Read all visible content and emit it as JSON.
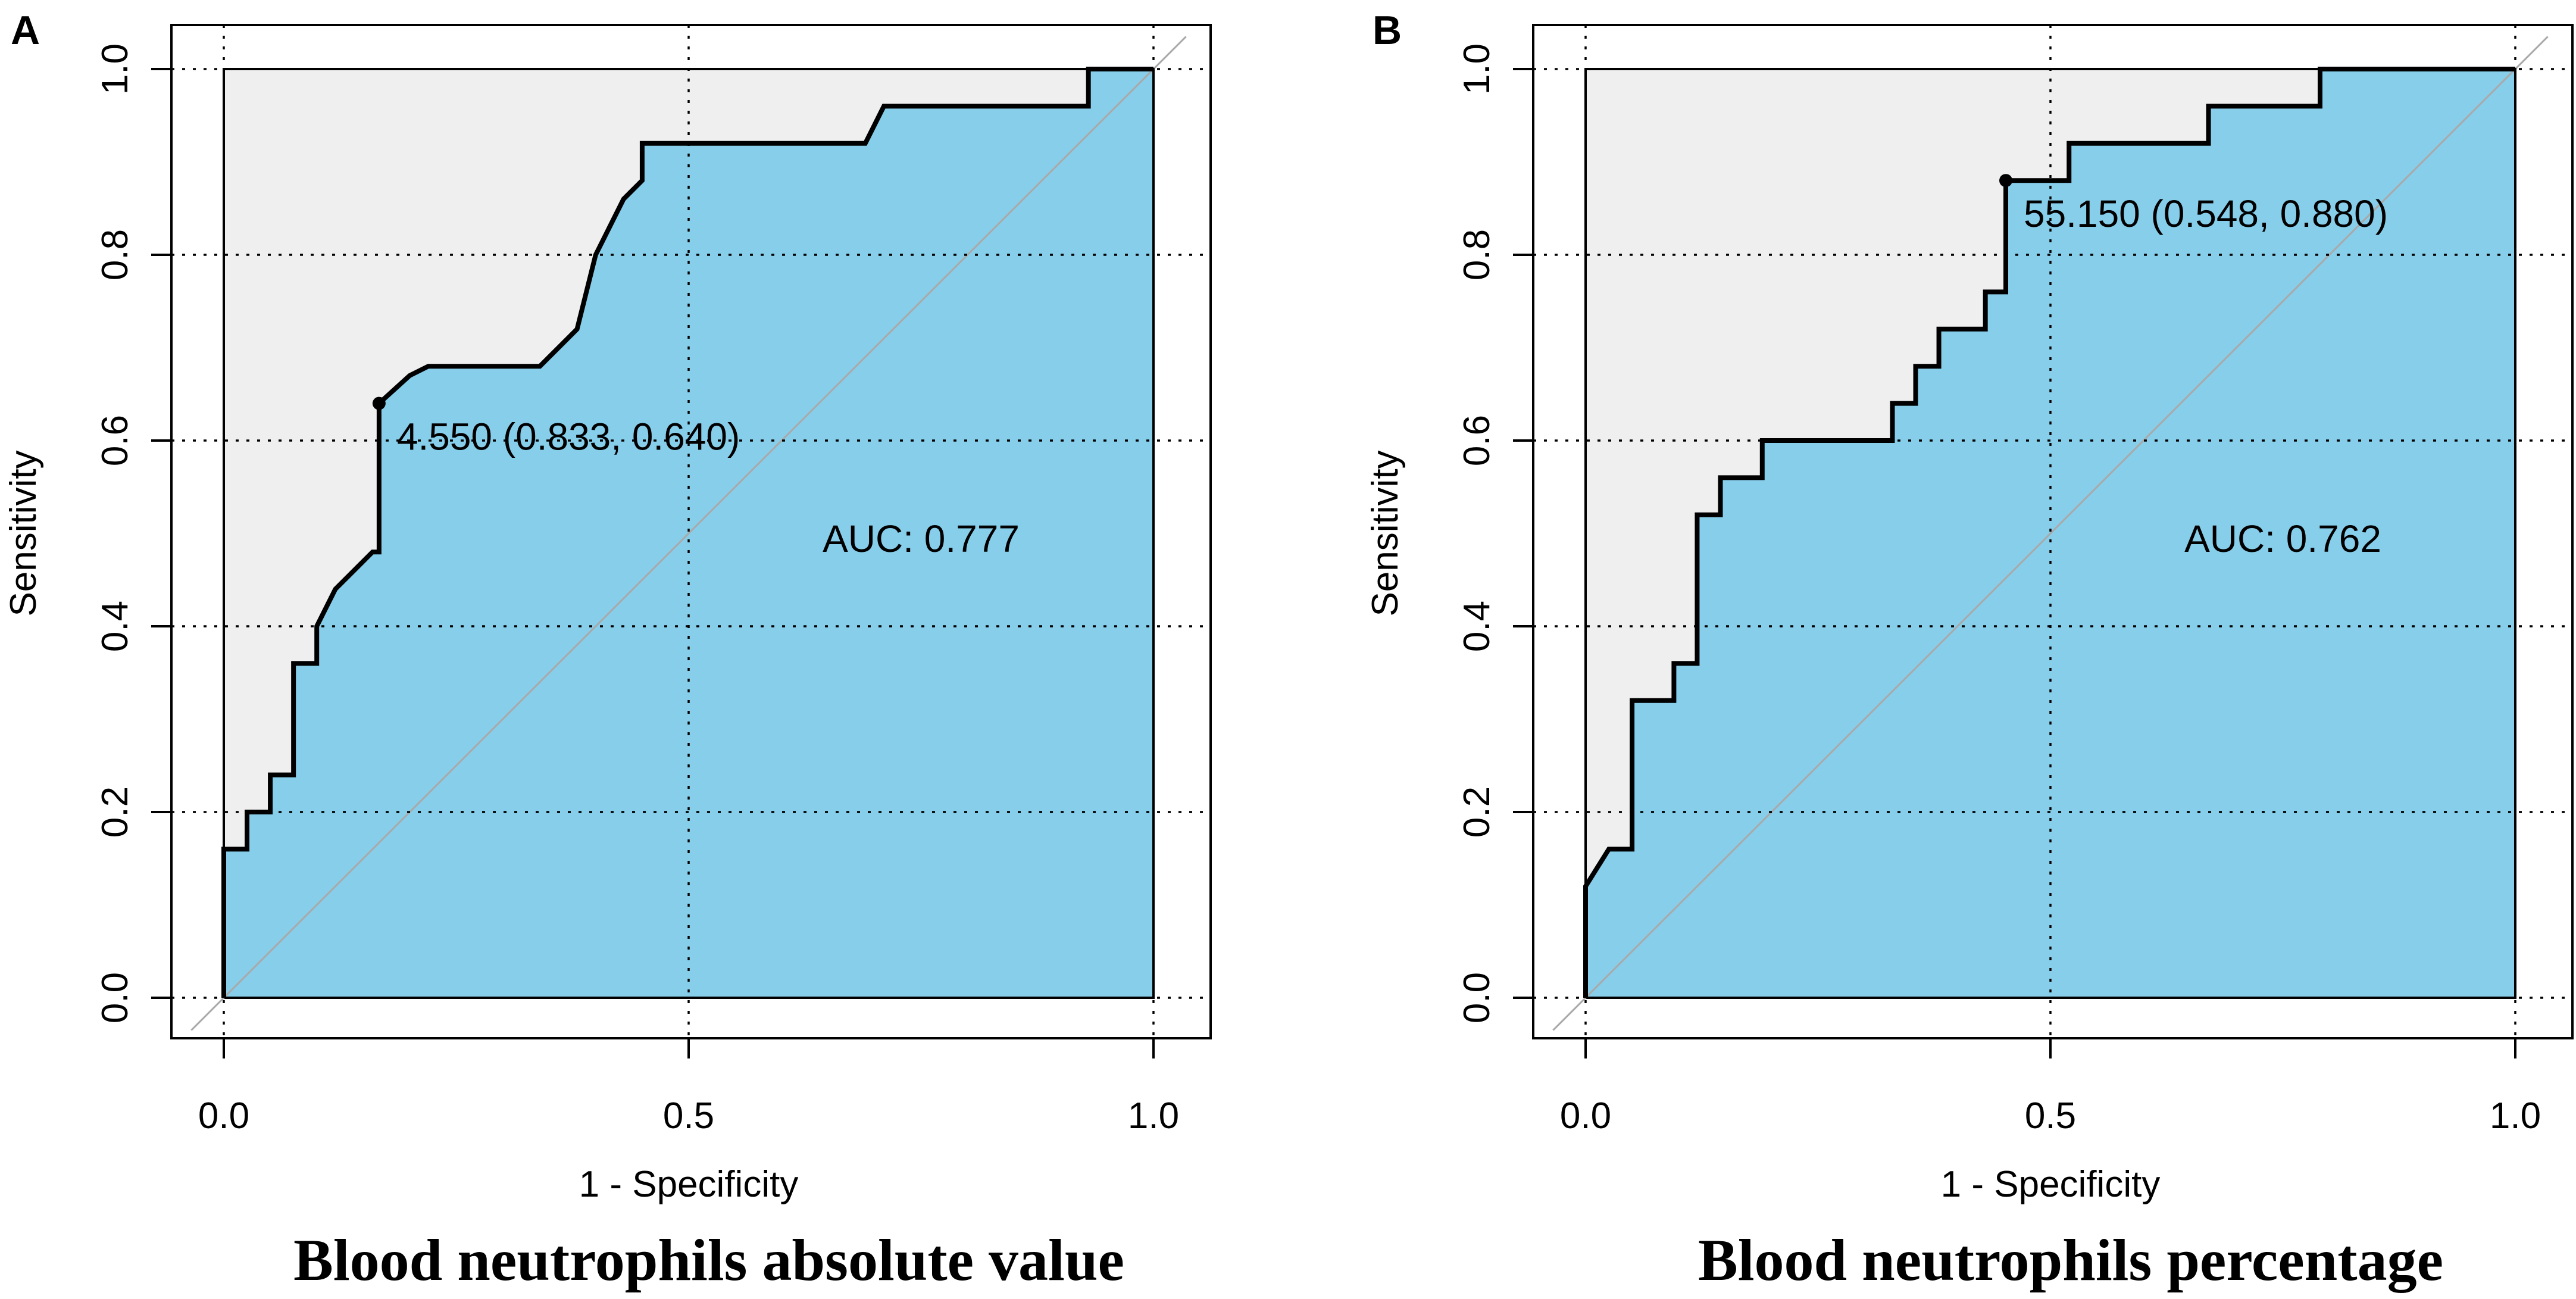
{
  "colors": {
    "fill_under_curve": "#87ceeb",
    "fill_above_curve": "#efefef",
    "curve": "#000000",
    "diagonal": "#a9a9a9",
    "grid": "#000000",
    "text": "#000000"
  },
  "chart_data": [
    {
      "type": "line",
      "panel_label": "A",
      "title": "Blood neutrophils absolute value",
      "xlabel": "1 - Specificity",
      "ylabel": "Sensitivity",
      "xlim": [
        0,
        1
      ],
      "ylim": [
        0,
        1
      ],
      "x_ticks": [
        "0.0",
        "0.5",
        "1.0"
      ],
      "y_ticks": [
        "0.0",
        "0.2",
        "0.4",
        "0.6",
        "0.8",
        "1.0"
      ],
      "grid": true,
      "auc_label": "AUC: 0.777",
      "threshold_label": "4.550 (0.833, 0.640)",
      "threshold_point": {
        "x": 0.167,
        "y": 0.64
      },
      "series": [
        {
          "name": "ROC curve",
          "x": [
            0,
            0,
            0.025,
            0.025,
            0.05,
            0.05,
            0.075,
            0.075,
            0.1,
            0.1,
            0.12,
            0.14,
            0.16,
            0.167,
            0.167,
            0.2,
            0.22,
            0.34,
            0.38,
            0.4,
            0.43,
            0.45,
            0.45,
            0.5,
            0.69,
            0.71,
            0.93,
            0.93,
            1
          ],
          "y": [
            0,
            0.16,
            0.16,
            0.2,
            0.2,
            0.24,
            0.24,
            0.36,
            0.36,
            0.4,
            0.44,
            0.46,
            0.48,
            0.48,
            0.64,
            0.67,
            0.68,
            0.68,
            0.72,
            0.8,
            0.86,
            0.88,
            0.92,
            0.92,
            0.92,
            0.96,
            0.96,
            1,
            1
          ]
        }
      ]
    },
    {
      "type": "line",
      "panel_label": "B",
      "title": "Blood neutrophils percentage",
      "xlabel": "1 - Specificity",
      "ylabel": "Sensitivity",
      "xlim": [
        0,
        1
      ],
      "ylim": [
        0,
        1
      ],
      "x_ticks": [
        "0.0",
        "0.5",
        "1.0"
      ],
      "y_ticks": [
        "0.0",
        "0.2",
        "0.4",
        "0.6",
        "0.8",
        "1.0"
      ],
      "grid": true,
      "auc_label": "AUC: 0.762",
      "threshold_label": "55.150 (0.548, 0.880)",
      "threshold_point": {
        "x": 0.452,
        "y": 0.88
      },
      "series": [
        {
          "name": "ROC curve",
          "x": [
            0,
            0,
            0.025,
            0.05,
            0.05,
            0.095,
            0.095,
            0.12,
            0.12,
            0.145,
            0.145,
            0.19,
            0.19,
            0.33,
            0.33,
            0.355,
            0.355,
            0.38,
            0.38,
            0.43,
            0.43,
            0.452,
            0.452,
            0.52,
            0.52,
            0.67,
            0.67,
            0.79,
            0.79,
            1
          ],
          "y": [
            0,
            0.12,
            0.16,
            0.16,
            0.32,
            0.32,
            0.36,
            0.36,
            0.52,
            0.52,
            0.56,
            0.56,
            0.6,
            0.6,
            0.64,
            0.64,
            0.68,
            0.68,
            0.72,
            0.72,
            0.76,
            0.76,
            0.88,
            0.88,
            0.92,
            0.92,
            0.96,
            0.96,
            1,
            1
          ]
        }
      ]
    }
  ]
}
